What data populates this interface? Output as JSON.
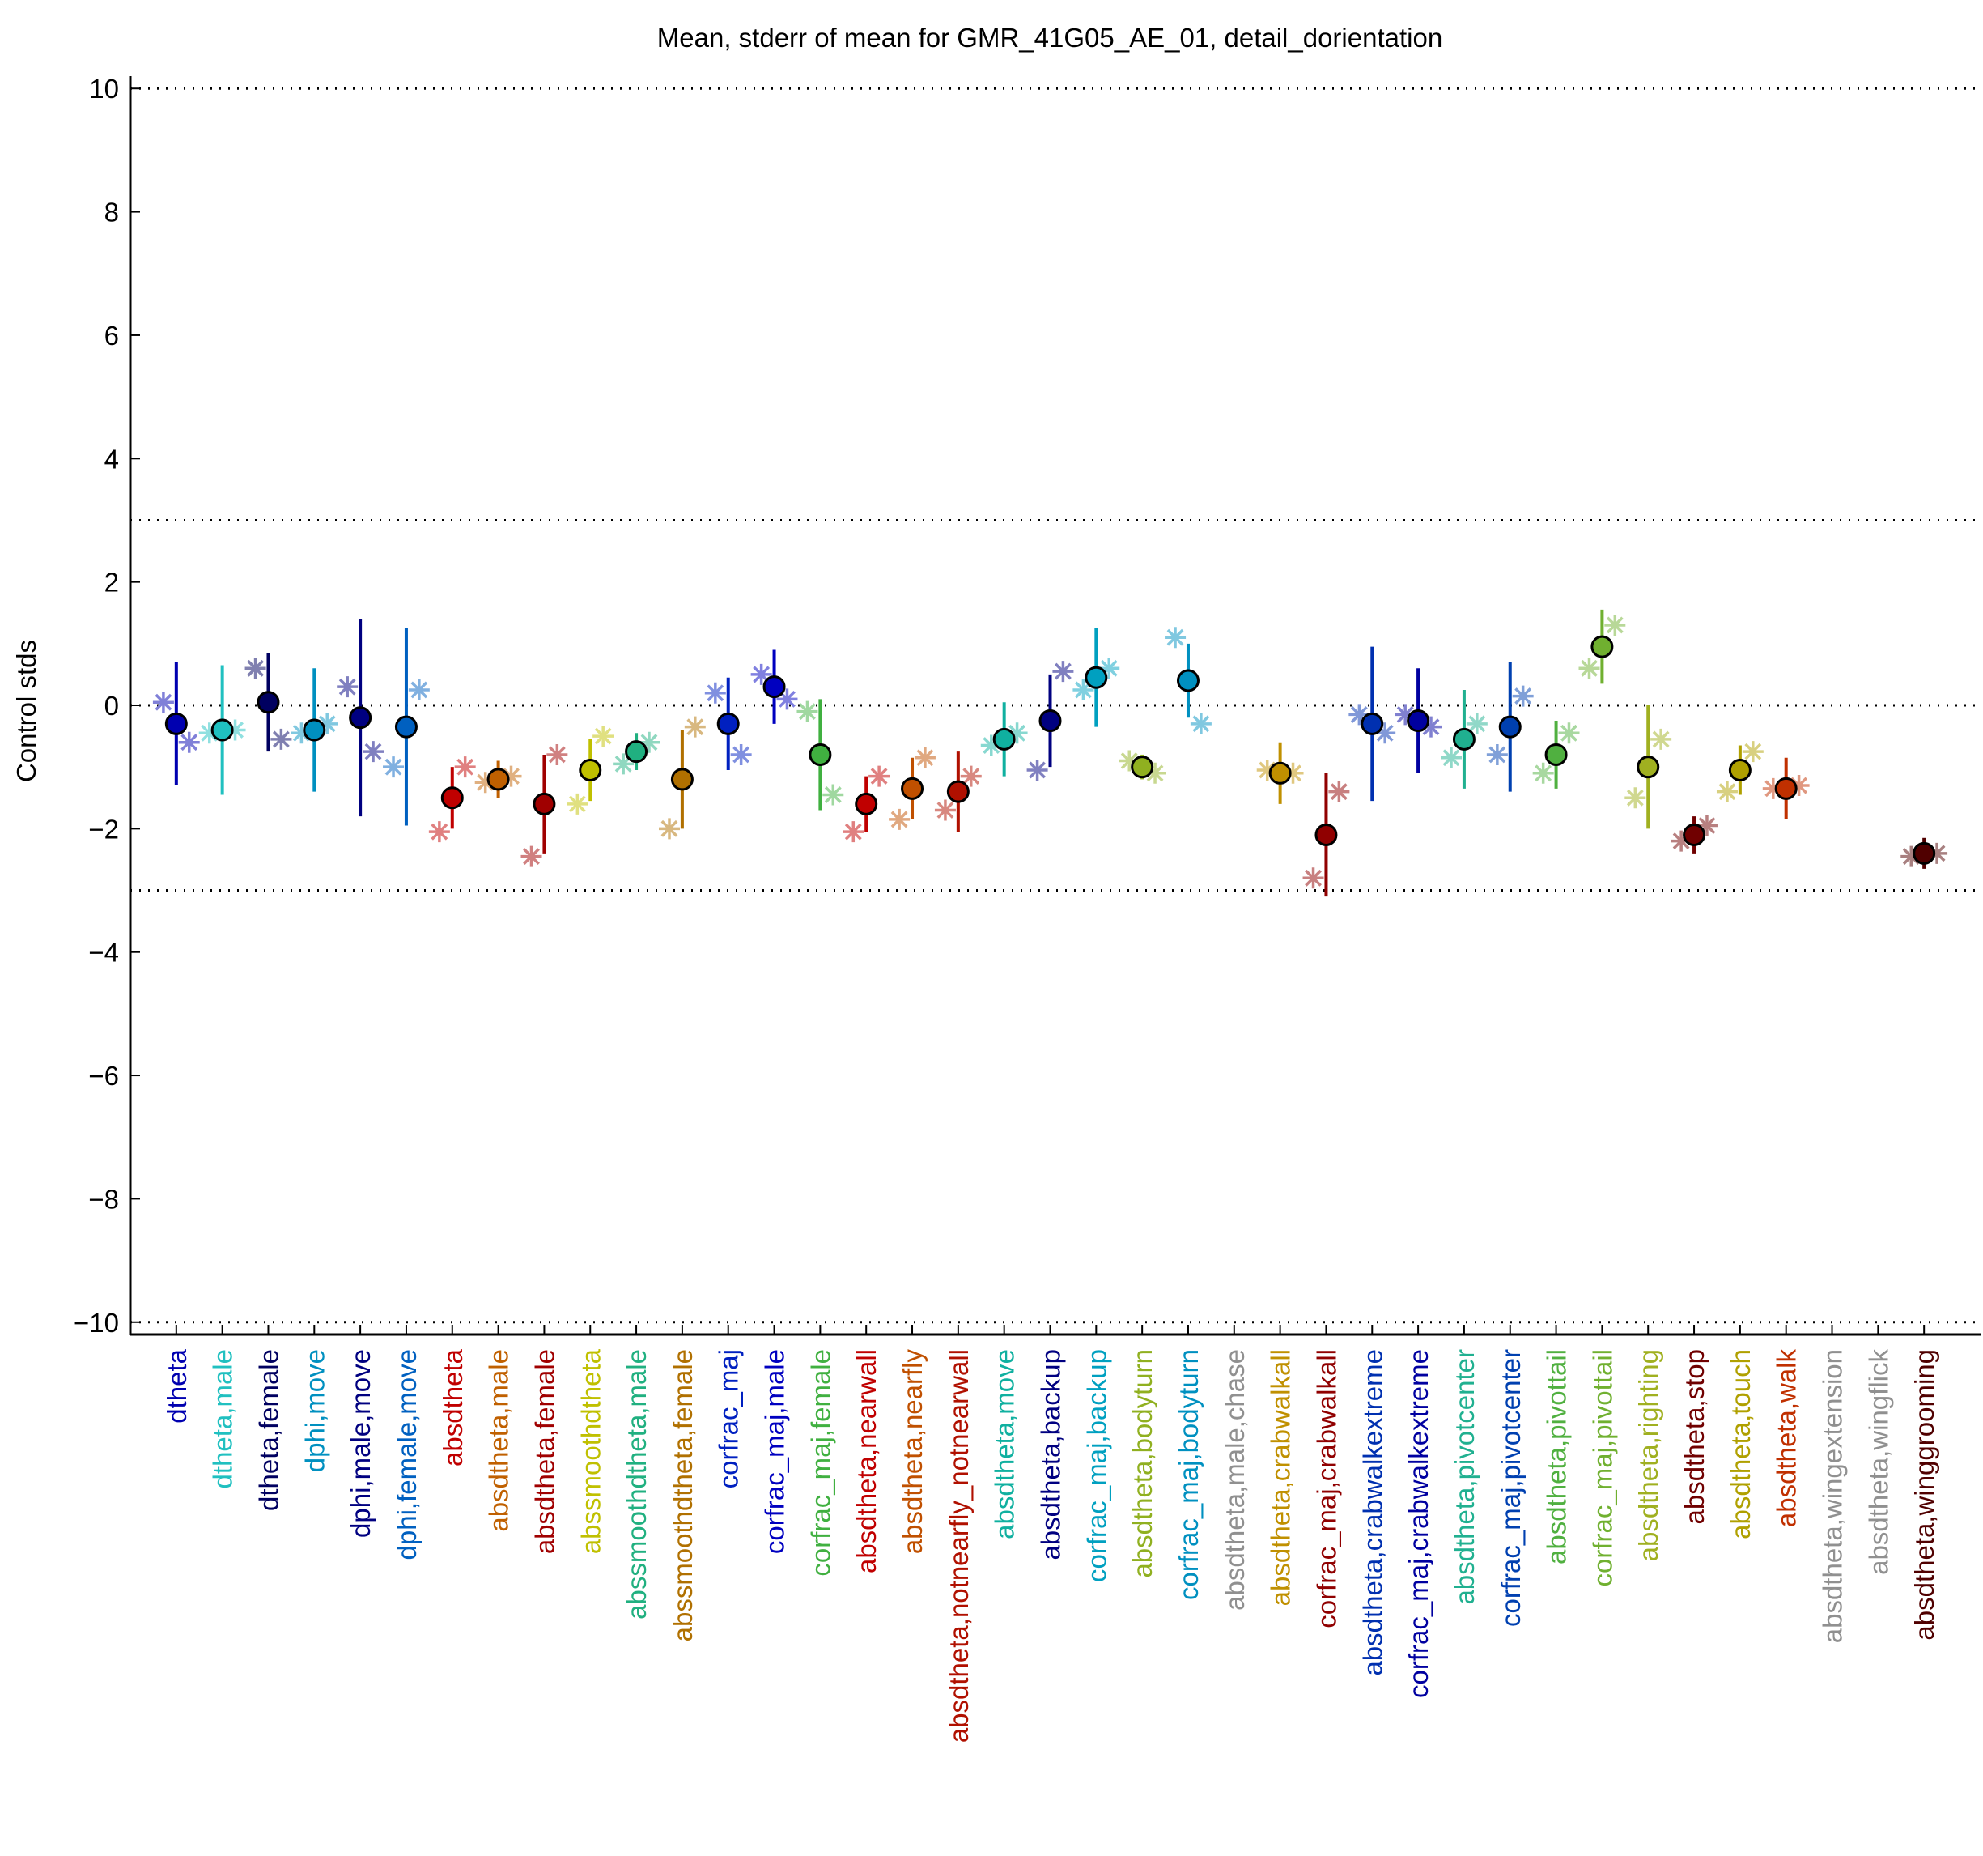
{
  "chart_data": {
    "type": "errorbar",
    "title": "Mean, stderr of mean for GMR_41G05_AE_01, detail_dorientation",
    "ylabel": "Control stds",
    "categories": [
      "dtheta",
      "dtheta,male",
      "dtheta,female",
      "dphi,move",
      "dphi,male,move",
      "dphi,female,move",
      "absdtheta",
      "absdtheta,male",
      "absdtheta,female",
      "abssmoothdtheta",
      "abssmoothdtheta,male",
      "abssmoothdtheta,female",
      "corfrac_maj",
      "corfrac_maj,male",
      "corfrac_maj,female",
      "absdtheta,nearwall",
      "absdtheta,nearfly",
      "absdtheta,notnearfly_notnearwall",
      "absdtheta,move",
      "absdtheta,backup",
      "corfrac_maj,backup",
      "absdtheta,bodyturn",
      "corfrac_maj,bodyturn",
      "absdtheta,male,chase",
      "absdtheta,crabwalkall",
      "corfrac_maj,crabwalkall",
      "absdtheta,crabwalkextreme",
      "corfrac_maj,crabwalkextreme",
      "absdtheta,pivotcenter",
      "corfrac_maj,pivotcenter",
      "absdtheta,pivottail",
      "corfrac_maj,pivottail",
      "absdtheta,righting",
      "absdtheta,stop",
      "absdtheta,touch",
      "absdtheta,walk",
      "absdtheta,wingextension",
      "absdtheta,wingflick",
      "absdtheta,winggrooming"
    ],
    "colors": [
      "#0000b0",
      "#20c0c0",
      "#000060",
      "#0090c0",
      "#000080",
      "#0060c0",
      "#c00000",
      "#c06000",
      "#a00000",
      "#c0c000",
      "#20b080",
      "#b07000",
      "#0020c0",
      "#0000c0",
      "#40b040",
      "#c00000",
      "#c05000",
      "#b01000",
      "#10b0a0",
      "#000080",
      "#00a0c0",
      "#90b020",
      "#0090c0",
      "#909090",
      "#c09000",
      "#900000",
      "#0030b0",
      "#0000a0",
      "#20b090",
      "#0040b0",
      "#50b040",
      "#70b030",
      "#a0b020",
      "#700000",
      "#b0a000",
      "#c03000",
      "#909090",
      "#909090",
      "#500000"
    ],
    "means": [
      -0.3,
      -0.4,
      0.05,
      -0.4,
      -0.2,
      -0.35,
      -1.5,
      -1.2,
      -1.6,
      -1.05,
      -0.75,
      -1.2,
      -0.3,
      0.3,
      -0.8,
      -1.6,
      -1.35,
      -1.4,
      -0.55,
      -0.25,
      0.45,
      -1.0,
      0.4,
      null,
      -1.1,
      -2.1,
      -0.3,
      -0.25,
      -0.55,
      -0.35,
      -0.8,
      0.95,
      -1.0,
      -2.1,
      -1.05,
      -1.35,
      null,
      null,
      -2.4
    ],
    "errors": [
      1.0,
      1.05,
      0.8,
      1.0,
      1.6,
      1.6,
      0.5,
      0.3,
      0.8,
      0.5,
      0.3,
      0.8,
      0.75,
      0.6,
      0.9,
      0.45,
      0.5,
      0.65,
      0.6,
      0.75,
      0.8,
      0.2,
      0.6,
      null,
      0.5,
      1.0,
      1.25,
      0.85,
      0.8,
      1.05,
      0.55,
      0.6,
      1.0,
      0.3,
      0.4,
      0.5,
      null,
      null,
      0.25
    ],
    "star_left": [
      0.05,
      -0.45,
      0.6,
      -0.45,
      0.3,
      -1.0,
      -2.05,
      -1.25,
      -2.45,
      -1.6,
      -0.95,
      -2.0,
      0.2,
      0.5,
      -0.1,
      -2.05,
      -1.85,
      -1.7,
      -0.65,
      -1.05,
      0.25,
      -0.9,
      1.1,
      null,
      -1.05,
      -2.8,
      -0.15,
      -0.15,
      -0.85,
      -0.8,
      -1.1,
      0.6,
      -1.5,
      -2.2,
      -1.4,
      -1.35,
      null,
      null,
      -2.45
    ],
    "star_right": [
      -0.6,
      -0.4,
      -0.55,
      -0.3,
      -0.75,
      0.25,
      -1.0,
      -1.15,
      -0.8,
      -0.5,
      -0.6,
      -0.35,
      -0.8,
      0.1,
      -1.45,
      -1.15,
      -0.85,
      -1.15,
      -0.45,
      0.55,
      0.6,
      -1.1,
      -0.3,
      null,
      -1.1,
      -1.4,
      -0.45,
      -0.35,
      -0.3,
      0.15,
      -0.45,
      1.3,
      -0.55,
      -1.95,
      -0.75,
      -1.3,
      null,
      null,
      -2.4
    ],
    "ylim": [
      -10.2,
      10.2
    ],
    "yticks": [
      {
        "value": -10,
        "label": "−10"
      },
      {
        "value": -8,
        "label": "−8"
      },
      {
        "value": -6,
        "label": "−6"
      },
      {
        "value": -4,
        "label": "−4"
      },
      {
        "value": -2,
        "label": "−2"
      },
      0,
      2,
      4,
      6,
      8,
      10
    ],
    "reference_lines": [
      -10,
      -3,
      0,
      3,
      10
    ]
  }
}
